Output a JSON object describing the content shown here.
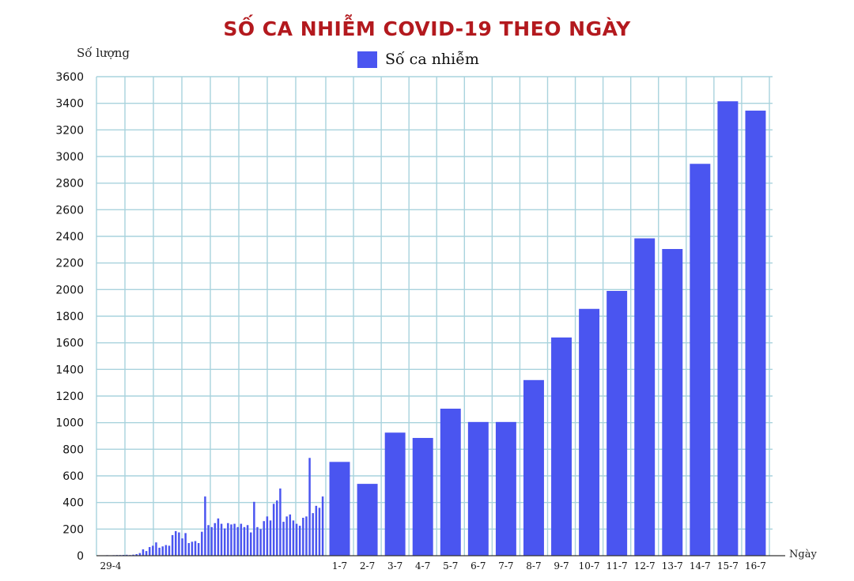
{
  "chart_data": {
    "type": "bar",
    "title": "SỐ CA NHIỄM COVID-19 THEO NGÀY",
    "ylabel": "Số lượng",
    "xlabel": "Ngày",
    "legend": "Số ca nhiễm",
    "legend_position": "top-center",
    "ylim": [
      0,
      3600
    ],
    "yticks": [
      0,
      200,
      400,
      600,
      800,
      1000,
      1200,
      1400,
      1600,
      1800,
      2000,
      2200,
      2400,
      2600,
      2800,
      3000,
      3200,
      3400,
      3600
    ],
    "grid": true,
    "bar_color": "#4a55f0",
    "title_color": "#b3191e",
    "grid_color": "#a9d3dd",
    "early_period": {
      "start_label": "29-4",
      "values": [
        2,
        3,
        4,
        3,
        4,
        5,
        5,
        6,
        7,
        5,
        8,
        12,
        20,
        48,
        35,
        65,
        75,
        100,
        60,
        70,
        80,
        75,
        155,
        185,
        175,
        130,
        170,
        95,
        105,
        110,
        95,
        180,
        445,
        230,
        215,
        245,
        280,
        240,
        205,
        245,
        235,
        240,
        215,
        240,
        215,
        230,
        175,
        405,
        215,
        200,
        260,
        295,
        265,
        390,
        415,
        505,
        255,
        295,
        310,
        265,
        240,
        225,
        285,
        295,
        735,
        320,
        375,
        360,
        445
      ]
    },
    "categories": [
      "1-7",
      "2-7",
      "3-7",
      "4-7",
      "5-7",
      "6-7",
      "7-7",
      "8-7",
      "9-7",
      "10-7",
      "11-7",
      "12-7",
      "13-7",
      "14-7",
      "15-7",
      "16-7"
    ],
    "values": [
      705,
      540,
      925,
      885,
      1105,
      1005,
      1005,
      1320,
      1640,
      1855,
      1990,
      2385,
      2305,
      2945,
      3415,
      3345
    ]
  }
}
